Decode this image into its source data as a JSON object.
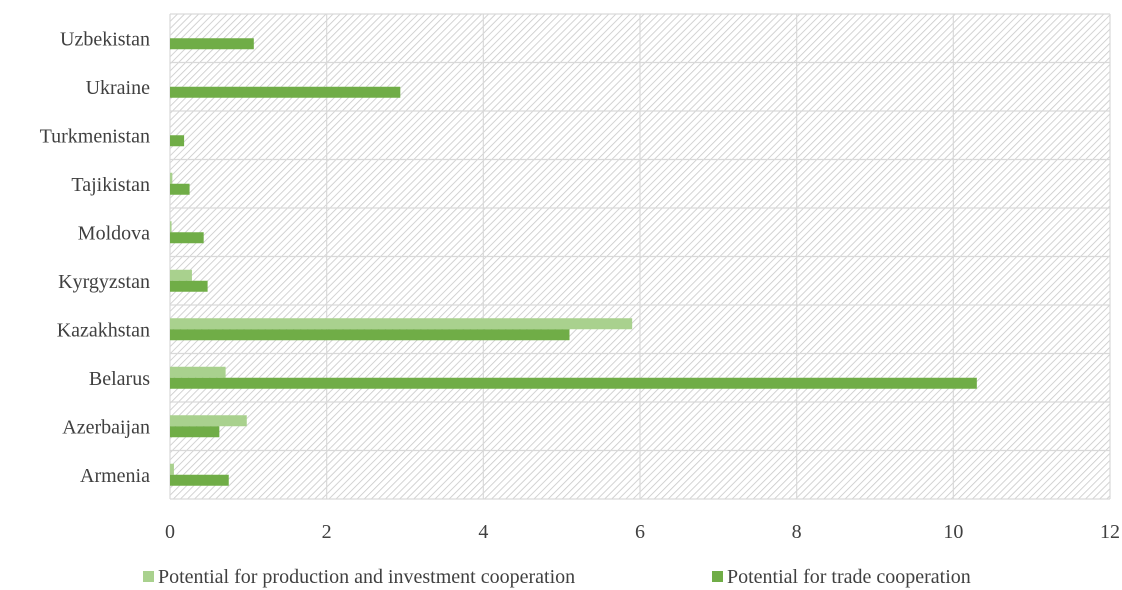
{
  "chart_data": {
    "type": "bar",
    "orientation": "horizontal",
    "categories": [
      "Armenia",
      "Azerbaijan",
      "Belarus",
      "Kazakhstan",
      "Kyrgyzstan",
      "Moldova",
      "Tajikistan",
      "Turkmenistan",
      "Ukraine",
      "Uzbekistan"
    ],
    "series": [
      {
        "name": "Potential for production and investment cooperation",
        "color": "#a9d18e",
        "values": [
          0.05,
          0.98,
          0.71,
          5.9,
          0.28,
          0.02,
          0.03,
          0.0,
          0.0,
          0.0
        ]
      },
      {
        "name": "Potential for trade cooperation",
        "color": "#70ad47",
        "values": [
          0.75,
          0.63,
          10.3,
          5.1,
          0.48,
          0.43,
          0.25,
          0.18,
          2.94,
          1.07
        ]
      }
    ],
    "xlim": [
      0,
      12
    ],
    "xticks": [
      0,
      2,
      4,
      6,
      8,
      10,
      12
    ],
    "xtick_labels": [
      "0",
      "2",
      "4",
      "6",
      "8",
      "10",
      "12"
    ],
    "title": "",
    "xlabel": "",
    "ylabel": "",
    "grid": true,
    "legend_position": "bottom"
  }
}
